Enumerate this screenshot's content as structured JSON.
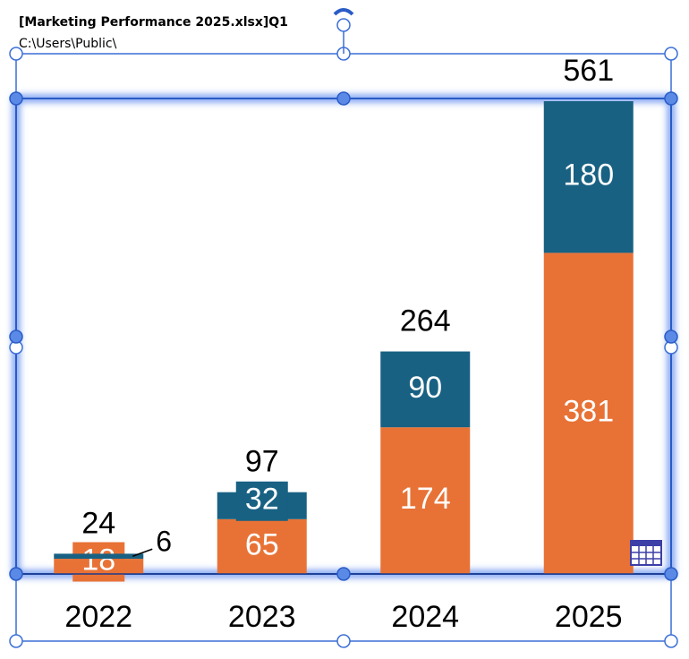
{
  "header": {
    "title": "[Marketing Performance 2025.xlsx]Q1",
    "path": "C:\\Users\\Public\\"
  },
  "chart_data": {
    "type": "stacked-bar",
    "categories": [
      "2022",
      "2023",
      "2024",
      "2025"
    ],
    "series": [
      {
        "color": "#e87236",
        "values": [
          18,
          65,
          174,
          381
        ]
      },
      {
        "color": "#186183",
        "values": [
          6,
          32,
          90,
          180
        ]
      }
    ],
    "totals": [
      24,
      97,
      264,
      561
    ],
    "ylim": [
      0,
      561
    ]
  }
}
